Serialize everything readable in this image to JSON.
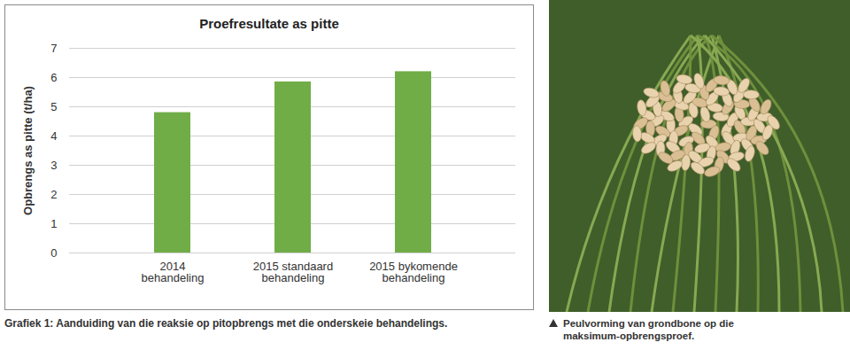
{
  "chart_data": {
    "type": "bar",
    "title": "Proefresultate as pitte",
    "categories": [
      "2014 behandeling",
      "2015 standaard behandeling",
      "2015 bykomende behandeling"
    ],
    "values": [
      4.8,
      5.85,
      6.2
    ],
    "color": "#70ad47",
    "ylabel": "Opbrengs as pitte (t/ha)",
    "ylim": [
      0,
      7
    ],
    "yticks": [
      0,
      1,
      2,
      3,
      4,
      5,
      6,
      7
    ],
    "grid": true,
    "caption": "Grafiek 1: Aanduiding van die reaksie op pitopbrengs met die onderskeie behandelings."
  },
  "photo": {
    "caption": "Peulvorming van grondbone op die maksimum-opbrengsproef."
  }
}
